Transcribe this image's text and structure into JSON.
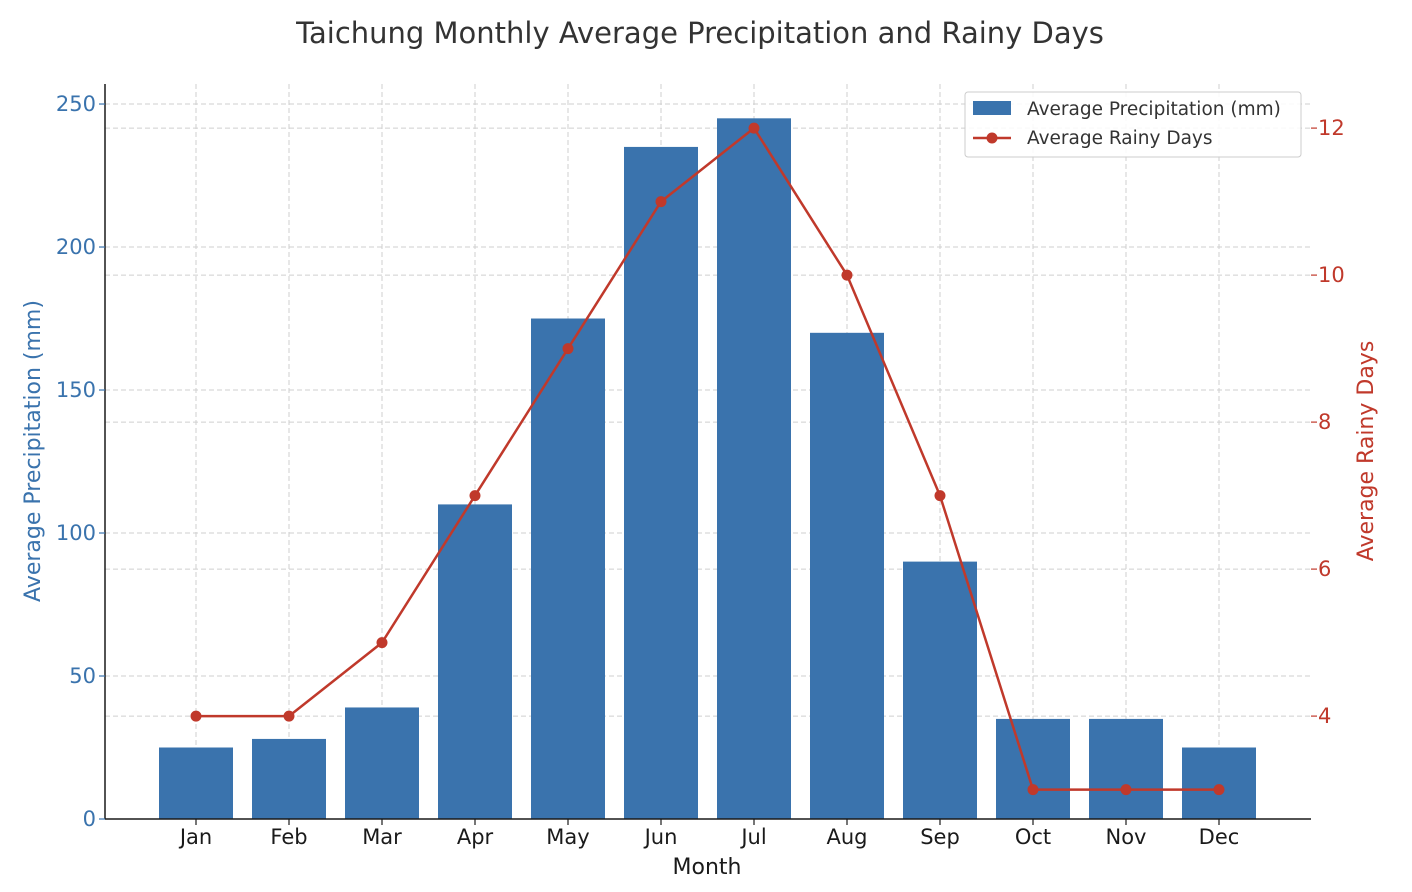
{
  "chart_data": {
    "type": "bar",
    "title": "Taichung Monthly Average Precipitation and Rainy Days",
    "xlabel": "Month",
    "ylabel": "Average Precipitation (mm)",
    "y2label": "Average Rainy Days",
    "categories": [
      "Jan",
      "Feb",
      "Mar",
      "Apr",
      "May",
      "Jun",
      "Jul",
      "Aug",
      "Sep",
      "Oct",
      "Nov",
      "Dec"
    ],
    "series": [
      {
        "name": "Average Precipitation (mm)",
        "type": "bar",
        "axis": "left",
        "color": "#3a73ad",
        "values": [
          25,
          28,
          39,
          110,
          175,
          235,
          245,
          170,
          90,
          35,
          35,
          25
        ]
      },
      {
        "name": "Average Rainy Days",
        "type": "line",
        "axis": "right",
        "color": "#c0392b",
        "values": [
          4,
          4,
          5,
          7,
          9,
          11,
          12,
          10,
          7,
          3,
          3,
          3
        ]
      }
    ],
    "ylim": [
      0,
      257
    ],
    "y2lim": [
      2.6,
      12.6
    ],
    "yticks": [
      0,
      50,
      100,
      150,
      200,
      250
    ],
    "y2ticks": [
      4,
      6,
      8,
      10,
      12
    ],
    "grid": true,
    "legend": "top-right"
  }
}
